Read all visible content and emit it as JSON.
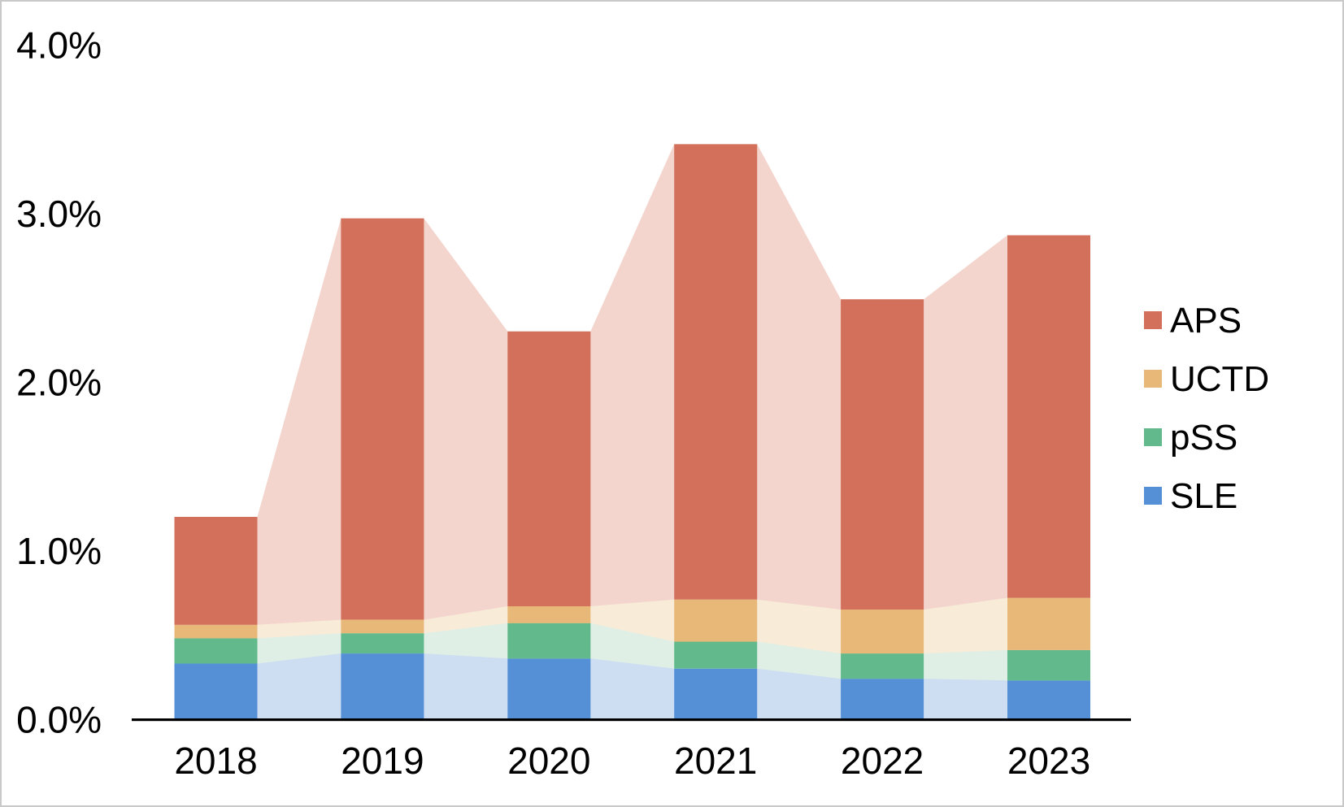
{
  "chart_data": {
    "type": "bar",
    "variant": "stacked-bars-with-area-overlay",
    "title": "",
    "xlabel": "",
    "ylabel": "",
    "categories": [
      "2018",
      "2019",
      "2020",
      "2021",
      "2022",
      "2023"
    ],
    "series": [
      {
        "name": "SLE",
        "color": "#5590d7",
        "light_color": "#cdddf2",
        "values": [
          0.33,
          0.39,
          0.36,
          0.3,
          0.24,
          0.23
        ]
      },
      {
        "name": "pSS",
        "color": "#62ba8c",
        "light_color": "#dfefe5",
        "values": [
          0.15,
          0.12,
          0.21,
          0.16,
          0.15,
          0.18
        ]
      },
      {
        "name": "UCTD",
        "color": "#e8b878",
        "light_color": "#f8ebd8",
        "values": [
          0.08,
          0.08,
          0.1,
          0.25,
          0.26,
          0.31
        ]
      },
      {
        "name": "APS",
        "color": "#d3705b",
        "light_color": "#f3d5cd",
        "values": [
          0.64,
          2.38,
          1.63,
          2.7,
          1.84,
          2.15
        ]
      }
    ],
    "totals": [
      1.2,
      2.97,
      2.3,
      3.41,
      2.49,
      2.87
    ],
    "y_axis": {
      "min": 0,
      "max": 4,
      "tick_labels": [
        "0.0%",
        "1.0%",
        "2.0%",
        "3.0%",
        "4.0%"
      ],
      "unit": "%"
    },
    "grid": false,
    "legend": {
      "position": "right",
      "entries": [
        {
          "label": "APS",
          "color": "#d3705b"
        },
        {
          "label": "UCTD",
          "color": "#e8b878"
        },
        {
          "label": "pSS",
          "color": "#62ba8c"
        },
        {
          "label": "SLE",
          "color": "#5590d7"
        }
      ]
    },
    "axis_color": "#000000",
    "text_color": "#000000"
  }
}
